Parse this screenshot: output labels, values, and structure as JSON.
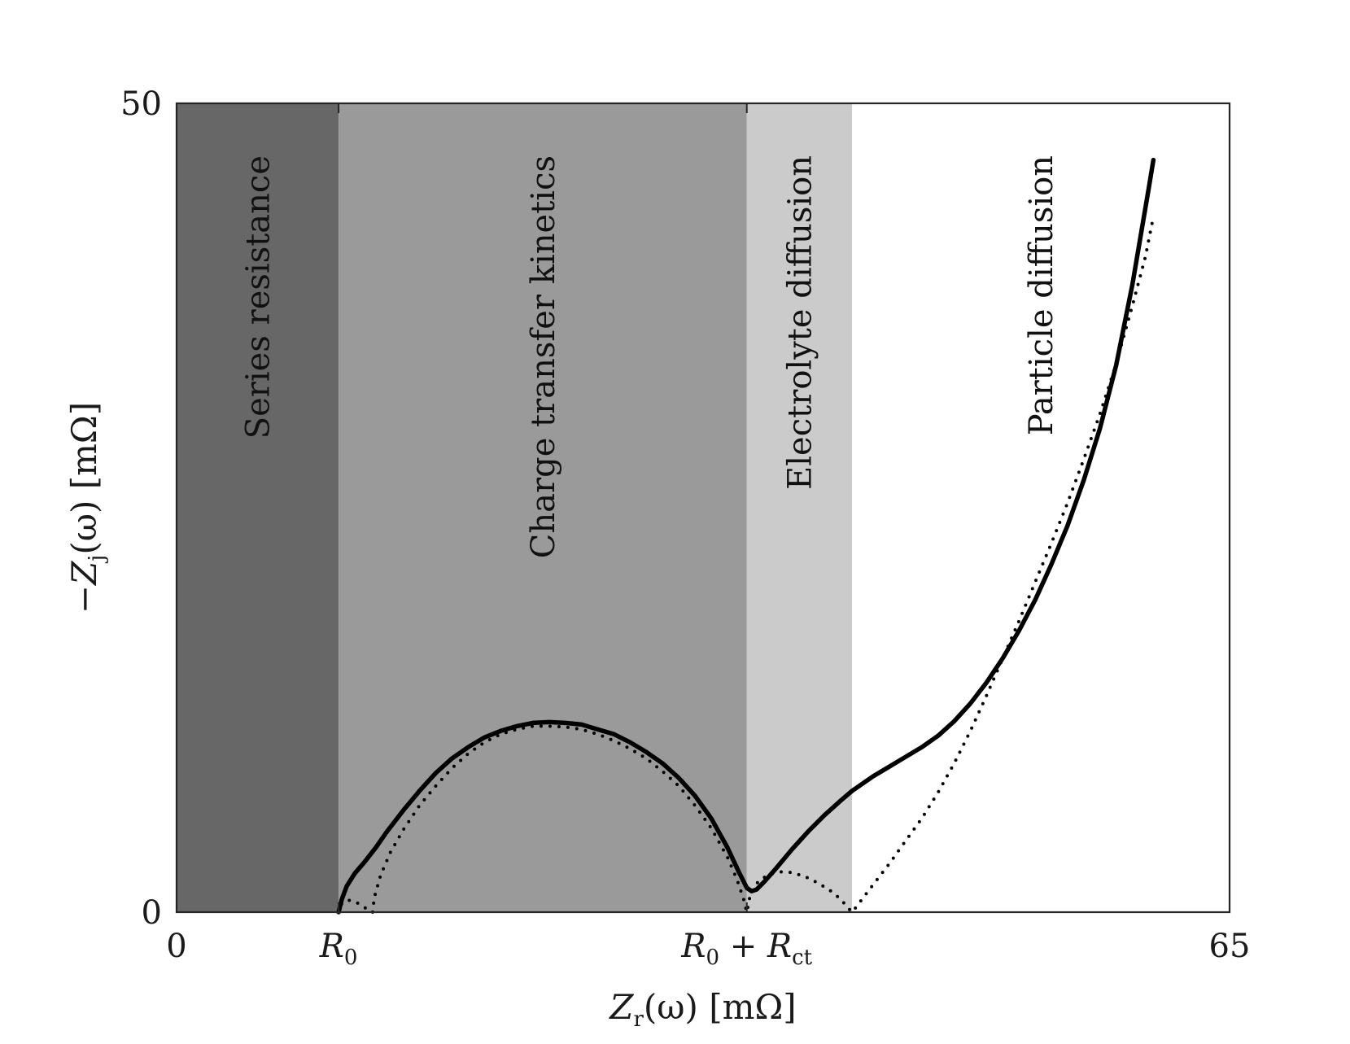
{
  "chart_data": {
    "type": "line",
    "xlabel": {
      "sym": "Z",
      "sub": "r",
      "rest": "(ω)  [mΩ]"
    },
    "ylabel": {
      "sym": "−Z",
      "sub": "j",
      "rest": "(ω)  [mΩ]"
    },
    "xlim": [
      0,
      65
    ],
    "ylim": [
      0,
      50
    ],
    "x_ticks": [
      {
        "value": 0,
        "label": "0"
      },
      {
        "value": 10,
        "label": "R",
        "sub": "0"
      },
      {
        "value": 35.2,
        "label": "R",
        "sub": "0",
        "suffix": " + R",
        "sub2": "ct"
      },
      {
        "value": 65,
        "label": "65"
      }
    ],
    "y_ticks": [
      {
        "value": 0,
        "label": "0"
      },
      {
        "value": 50,
        "label": "50"
      }
    ],
    "regions": [
      {
        "label": "Series resistance",
        "x0": 0,
        "x1": 10,
        "color": "#676767"
      },
      {
        "label": "Charge transfer kinetics",
        "x0": 10,
        "x1": 35.2,
        "color": "#9a9a9a"
      },
      {
        "label": "Electrolyte diffusion",
        "x0": 35.2,
        "x1": 41.7,
        "color": "#cbcbcb"
      },
      {
        "label": "Particle diffusion",
        "x0": 41.7,
        "x1": 65,
        "color": "#ffffff"
      }
    ],
    "series": [
      {
        "style": "solid",
        "color": "#000000",
        "points": [
          [
            10.0,
            0.0
          ],
          [
            10.2,
            0.8
          ],
          [
            10.5,
            1.6
          ],
          [
            11.0,
            2.4
          ],
          [
            11.6,
            3.1
          ],
          [
            12.3,
            4.0
          ],
          [
            13.0,
            5.0
          ],
          [
            14.0,
            6.3
          ],
          [
            15.0,
            7.5
          ],
          [
            16.0,
            8.6
          ],
          [
            17.0,
            9.5
          ],
          [
            18.0,
            10.2
          ],
          [
            19.0,
            10.8
          ],
          [
            20.0,
            11.2
          ],
          [
            21.0,
            11.5
          ],
          [
            22.0,
            11.7
          ],
          [
            23.0,
            11.75
          ],
          [
            24.0,
            11.7
          ],
          [
            25.0,
            11.6
          ],
          [
            26.0,
            11.3
          ],
          [
            27.0,
            11.0
          ],
          [
            28.0,
            10.5
          ],
          [
            29.0,
            9.9
          ],
          [
            30.0,
            9.2
          ],
          [
            31.0,
            8.3
          ],
          [
            32.0,
            7.2
          ],
          [
            33.0,
            5.8
          ],
          [
            34.0,
            4.0
          ],
          [
            34.7,
            2.5
          ],
          [
            35.2,
            1.5
          ],
          [
            35.5,
            1.3
          ],
          [
            35.8,
            1.4
          ],
          [
            36.3,
            1.9
          ],
          [
            37.0,
            2.7
          ],
          [
            38.0,
            3.9
          ],
          [
            39.0,
            5.0
          ],
          [
            40.0,
            6.0
          ],
          [
            41.0,
            6.9
          ],
          [
            41.7,
            7.5
          ],
          [
            43.0,
            8.4
          ],
          [
            44.0,
            9.0
          ],
          [
            45.0,
            9.6
          ],
          [
            46.0,
            10.2
          ],
          [
            47.0,
            10.9
          ],
          [
            48.0,
            11.8
          ],
          [
            49.0,
            12.9
          ],
          [
            50.0,
            14.2
          ],
          [
            51.0,
            15.7
          ],
          [
            52.0,
            17.4
          ],
          [
            53.0,
            19.3
          ],
          [
            54.0,
            21.5
          ],
          [
            55.0,
            23.9
          ],
          [
            56.0,
            26.7
          ],
          [
            57.0,
            29.9
          ],
          [
            58.0,
            33.8
          ],
          [
            59.0,
            38.8
          ],
          [
            60.0,
            44.7
          ],
          [
            60.3,
            46.5
          ]
        ]
      },
      {
        "style": "dotted",
        "color": "#000000",
        "points": [
          [
            10.0,
            0.0
          ],
          [
            10.2,
            0.55
          ],
          [
            10.5,
            0.75
          ],
          [
            10.9,
            0.7
          ],
          [
            11.3,
            0.5
          ],
          [
            11.6,
            0.3
          ],
          [
            12.0,
            0.0
          ],
          [
            12.1,
            0.0
          ],
          [
            12.2,
            0.9
          ],
          [
            12.6,
            2.3
          ],
          [
            13.2,
            3.7
          ],
          [
            14.0,
            5.1
          ],
          [
            15.0,
            6.6
          ],
          [
            16.0,
            7.8
          ],
          [
            17.0,
            8.9
          ],
          [
            18.0,
            9.8
          ],
          [
            19.0,
            10.5
          ],
          [
            20.0,
            11.0
          ],
          [
            21.0,
            11.3
          ],
          [
            22.0,
            11.5
          ],
          [
            23.0,
            11.5
          ],
          [
            24.0,
            11.45
          ],
          [
            25.0,
            11.3
          ],
          [
            26.0,
            11.0
          ],
          [
            27.0,
            10.6
          ],
          [
            28.0,
            10.1
          ],
          [
            29.0,
            9.5
          ],
          [
            30.0,
            8.7
          ],
          [
            31.0,
            7.8
          ],
          [
            32.0,
            6.6
          ],
          [
            33.0,
            5.2
          ],
          [
            34.0,
            3.4
          ],
          [
            34.6,
            2.0
          ],
          [
            35.0,
            0.8
          ],
          [
            35.2,
            0.0
          ],
          [
            35.4,
            1.0
          ],
          [
            35.9,
            1.9
          ],
          [
            36.5,
            2.3
          ],
          [
            37.2,
            2.5
          ],
          [
            38.0,
            2.45
          ],
          [
            38.8,
            2.2
          ],
          [
            39.6,
            1.8
          ],
          [
            40.4,
            1.3
          ],
          [
            41.0,
            0.8
          ],
          [
            41.5,
            0.2
          ],
          [
            41.7,
            0.0
          ],
          [
            43.0,
            1.7
          ],
          [
            44.0,
            3.0
          ],
          [
            45.0,
            4.4
          ],
          [
            46.0,
            5.8
          ],
          [
            47.0,
            7.4
          ],
          [
            48.0,
            9.2
          ],
          [
            49.0,
            11.2
          ],
          [
            50.0,
            13.4
          ],
          [
            51.0,
            15.7
          ],
          [
            52.0,
            18.0
          ],
          [
            53.0,
            20.4
          ],
          [
            54.0,
            22.8
          ],
          [
            55.0,
            25.3
          ],
          [
            56.0,
            28.0
          ],
          [
            57.0,
            30.8
          ],
          [
            58.0,
            33.9
          ],
          [
            59.0,
            37.5
          ],
          [
            59.8,
            40.5
          ],
          [
            60.3,
            43.0
          ]
        ]
      }
    ]
  }
}
